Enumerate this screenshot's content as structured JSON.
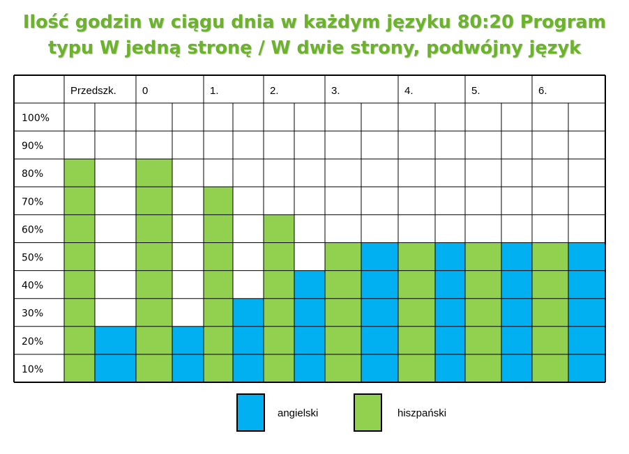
{
  "title": {
    "line1": "Ilość godzin w ciągu dnia w każdym języku 80:20 Program",
    "line2": "typu W jedną stronę / W dwie strony, podwójny język"
  },
  "colors": {
    "angielski": "#00b0f0",
    "hiszpanski": "#92d050",
    "grid": "#000000"
  },
  "chart_data": {
    "type": "bar",
    "categories": [
      "Przedszk.",
      "0",
      "1.",
      "2.",
      "3.",
      "4.",
      "5.",
      "6."
    ],
    "row_labels": [
      "100%",
      "90%",
      "80%",
      "70%",
      "60%",
      "50%",
      "40%",
      "30%",
      "20%",
      "10%"
    ],
    "ylim": [
      0,
      100
    ],
    "series": [
      {
        "name": "hiszpański",
        "color": "#92d050",
        "values": [
          80,
          80,
          70,
          60,
          50,
          50,
          50,
          50
        ]
      },
      {
        "name": "angielski",
        "color": "#00b0f0",
        "values": [
          20,
          20,
          30,
          40,
          50,
          50,
          50,
          50
        ]
      }
    ],
    "legend_position": "bottom-center"
  },
  "legend": [
    {
      "label": "angielski",
      "color": "#00b0f0"
    },
    {
      "label": "hiszpański",
      "color": "#92d050"
    }
  ]
}
